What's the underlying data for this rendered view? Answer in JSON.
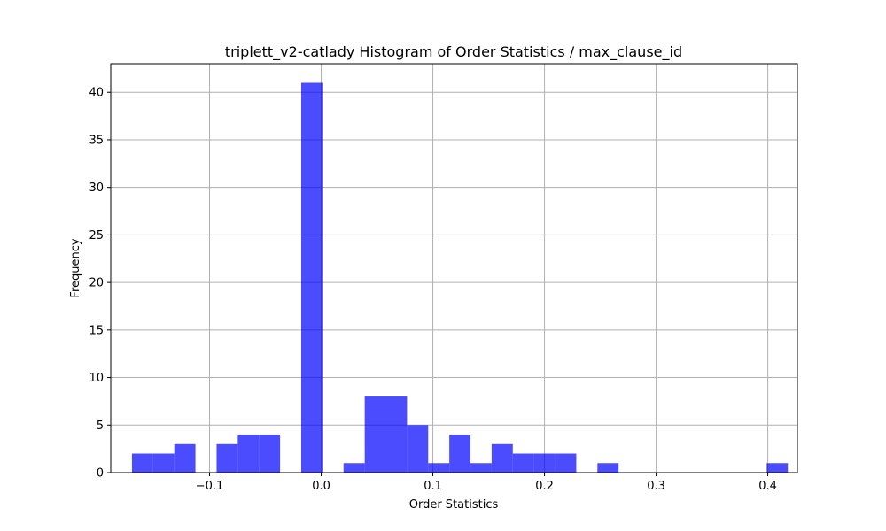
{
  "chart_data": {
    "type": "bar",
    "title": "triplett_v2-catlady Histogram of Order Statistics / max_clause_id",
    "xlabel": "Order Statistics",
    "ylabel": "Frequency",
    "xlim": [
      -0.1885,
      0.4265
    ],
    "ylim": [
      0,
      43
    ],
    "xticks": [
      -0.1,
      0.0,
      0.1,
      0.2,
      0.3,
      0.4
    ],
    "xtick_labels": [
      "−0.1",
      "0.0",
      "0.1",
      "0.2",
      "0.3",
      "0.4"
    ],
    "yticks": [
      0,
      5,
      10,
      15,
      20,
      25,
      30,
      35,
      40
    ],
    "ytick_labels": [
      "0",
      "5",
      "10",
      "15",
      "20",
      "25",
      "30",
      "35",
      "40"
    ],
    "grid": true,
    "bar_color": "#0000ff",
    "bar_opacity": 0.7,
    "bin_start": -0.1695,
    "bin_width": 0.01895,
    "values": [
      2,
      2,
      3,
      0,
      3,
      4,
      4,
      0,
      41,
      0,
      1,
      8,
      8,
      5,
      1,
      4,
      1,
      3,
      2,
      2,
      2,
      0,
      1,
      0,
      0,
      0,
      0,
      0,
      0,
      0,
      1
    ]
  }
}
